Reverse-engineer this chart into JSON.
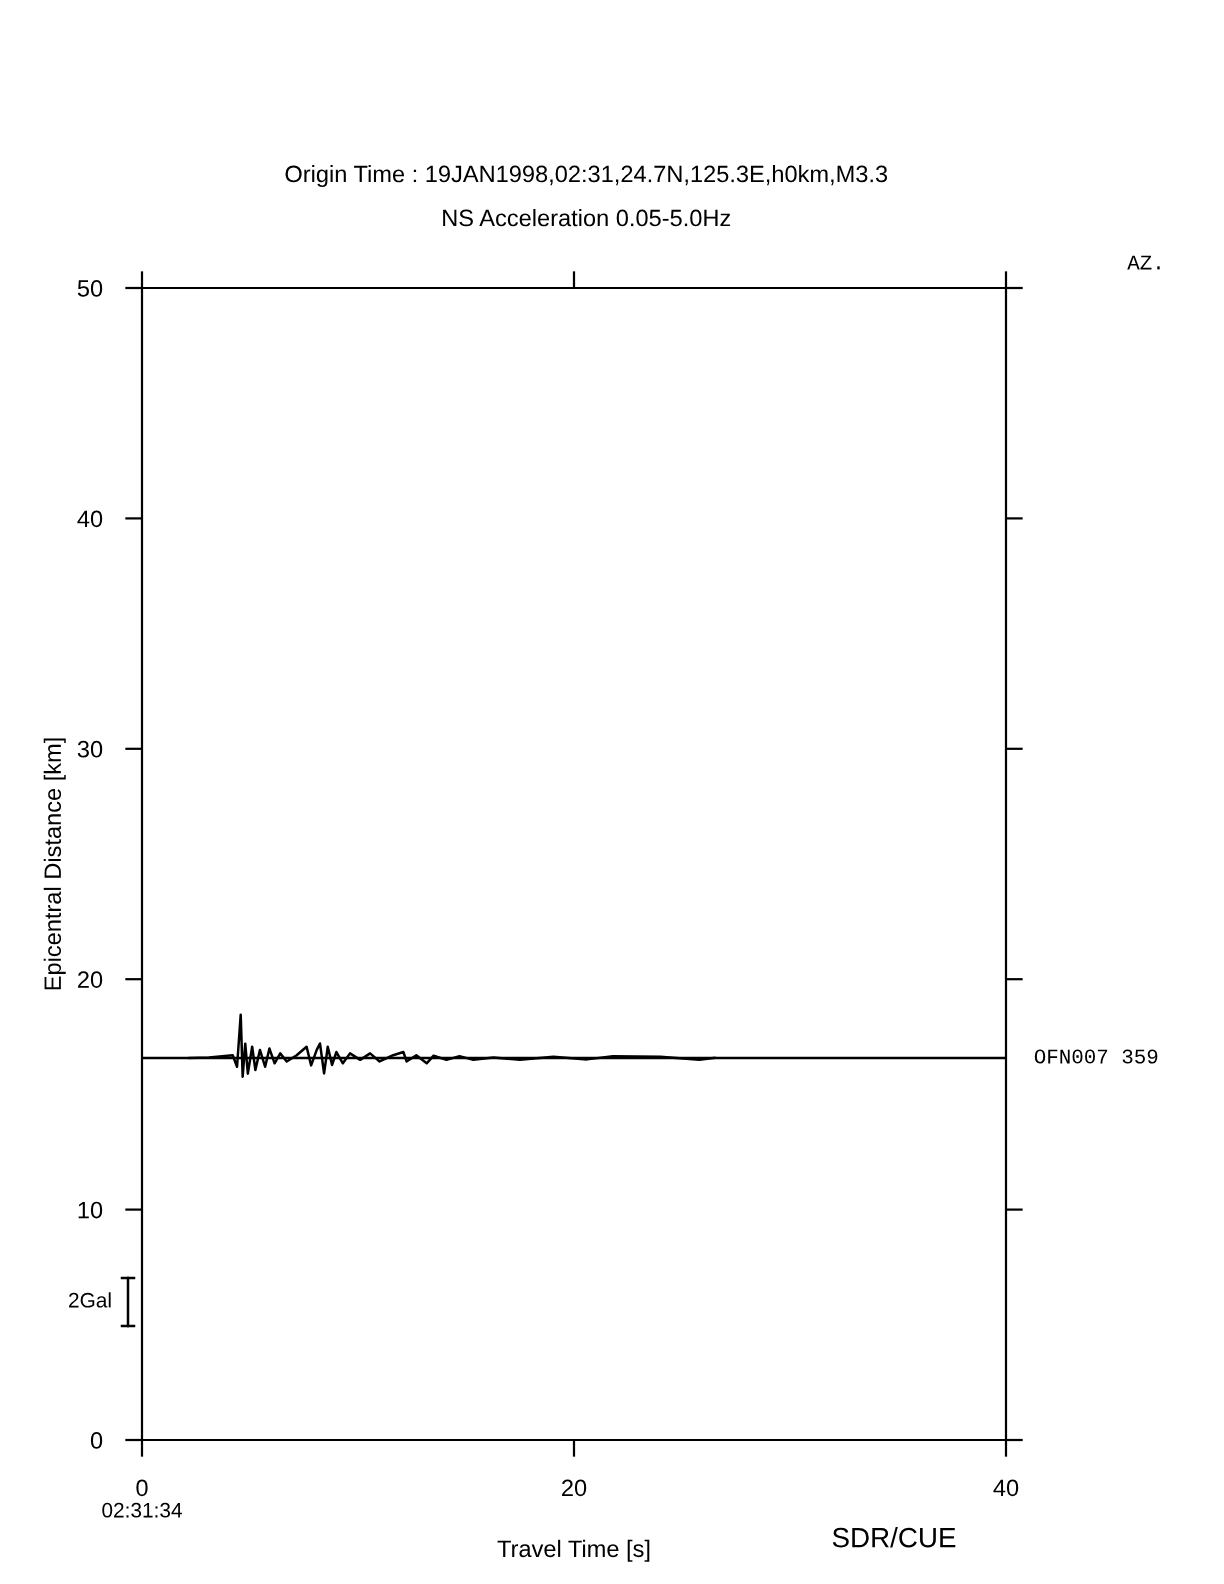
{
  "chart_data": {
    "type": "line",
    "title": "Origin Time : 19JAN1998,02:31,24.7N,125.3E,h0km,M3.3",
    "subtitle": "NS Acceleration 0.05-5.0Hz",
    "xlabel": "Travel Time [s]",
    "ylabel": "Epicentral Distance [km]",
    "x": [
      2.2,
      3.1,
      4.2,
      4.4,
      4.57,
      4.66,
      4.78,
      4.9,
      5.1,
      5.25,
      5.46,
      5.7,
      5.9,
      6.14,
      6.4,
      6.7,
      7.16,
      7.62,
      7.83,
      8.09,
      8.24,
      8.43,
      8.6,
      8.8,
      9.0,
      9.3,
      9.63,
      10.1,
      10.56,
      11.0,
      11.63,
      12.1,
      12.25,
      12.7,
      13.18,
      13.5,
      14.1,
      14.7,
      15.34,
      16.27,
      17.5,
      19.05,
      20.6,
      21.8,
      24.0,
      25.8,
      26.5
    ],
    "series": [
      {
        "color": "#000000",
        "values": [
          16.58,
          16.6,
          16.7,
          16.2,
          18.46,
          15.77,
          17.2,
          15.9,
          17.07,
          16.06,
          16.93,
          16.2,
          16.99,
          16.35,
          16.78,
          16.43,
          16.7,
          17.07,
          16.26,
          16.93,
          17.21,
          15.91,
          17.07,
          16.28,
          16.84,
          16.35,
          16.78,
          16.5,
          16.78,
          16.43,
          16.7,
          16.84,
          16.43,
          16.7,
          16.35,
          16.68,
          16.5,
          16.66,
          16.5,
          16.6,
          16.5,
          16.63,
          16.52,
          16.66,
          16.63,
          16.5,
          16.58
        ]
      }
    ],
    "xlim": [
      0,
      40
    ],
    "xticks": [
      0,
      20,
      40
    ],
    "ylim": [
      0,
      50
    ],
    "yticks": [
      0,
      10,
      20,
      30,
      40,
      50
    ],
    "ref_lines": [
      {
        "axis": "y",
        "value": 16.58,
        "label": "OFN007 359",
        "color": "#000000"
      }
    ],
    "annotations": [
      "AZ.",
      "2Gal",
      "02:31:34",
      "SDR/CUE"
    ],
    "grid": false,
    "legend": false,
    "marker": "none",
    "line_style": "solid"
  }
}
